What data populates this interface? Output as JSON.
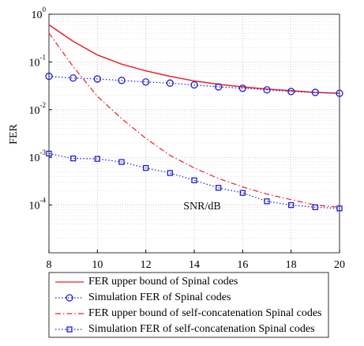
{
  "chart_data": {
    "type": "line",
    "x_label": "SNR/dB",
    "y_label": "FER",
    "x": [
      8,
      9,
      10,
      11,
      12,
      13,
      14,
      15,
      16,
      17,
      18,
      19,
      20
    ],
    "xlim": [
      8,
      20
    ],
    "xticks": [
      8,
      10,
      12,
      14,
      16,
      18,
      20
    ],
    "ylim": [
      1e-05,
      1
    ],
    "y_scale": "log",
    "yticks": [
      {
        "value": 1,
        "label": "10^0"
      },
      {
        "value": 0.1,
        "label": "10^-1"
      },
      {
        "value": 0.01,
        "label": "10^-2"
      },
      {
        "value": 0.001,
        "label": "10^-3"
      },
      {
        "value": 0.0001,
        "label": "10^-4"
      }
    ],
    "grid": true,
    "legend": "below",
    "series": [
      {
        "name": "FER upper bound of Spinal codes",
        "color": "#e8202a",
        "linestyle": "solid",
        "marker": "none",
        "values": [
          0.6,
          0.27,
          0.14,
          0.09,
          0.065,
          0.05,
          0.04,
          0.034,
          0.03,
          0.027,
          0.025,
          0.023,
          0.022
        ]
      },
      {
        "name": "Simulation FER of Spinal codes",
        "color": "#1f1fd0",
        "linestyle": "dotted",
        "marker": "circle",
        "values": [
          0.05,
          0.046,
          0.044,
          0.041,
          0.038,
          0.036,
          0.033,
          0.03,
          0.028,
          0.026,
          0.024,
          0.023,
          0.022
        ]
      },
      {
        "name": "FER upper bound of self-concatenation Spinal codes",
        "color": "#e8202a",
        "linestyle": "dashdot",
        "marker": "none",
        "values": [
          0.4,
          0.08,
          0.019,
          0.0065,
          0.0025,
          0.0011,
          0.0006,
          0.00036,
          0.00024,
          0.00017,
          0.00013,
          0.0001,
          9e-05
        ]
      },
      {
        "name": "Simulation FER of self-concatenation Spinal codes",
        "color": "#1f1fd0",
        "linestyle": "dotted",
        "marker": "square",
        "values": [
          0.0012,
          0.00095,
          0.00093,
          0.0008,
          0.0006,
          0.00047,
          0.00033,
          0.00023,
          0.00018,
          0.00012,
          0.0001,
          9e-05,
          8.5e-05
        ]
      }
    ]
  }
}
